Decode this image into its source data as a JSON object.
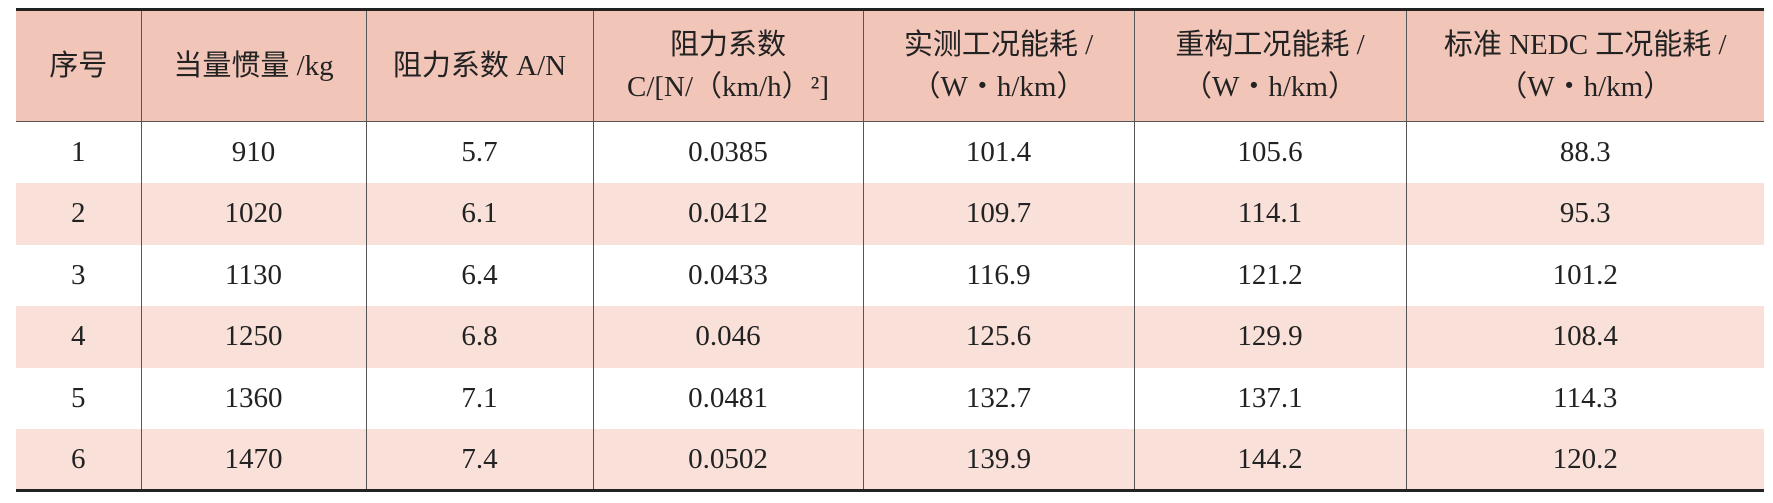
{
  "table": {
    "header": [
      [
        "序号"
      ],
      [
        "当量惯量 /kg"
      ],
      [
        "阻力系数 A/N"
      ],
      [
        "阻力系数",
        "C/[N/（km/h）²]"
      ],
      [
        "实测工况能耗 /",
        "（W・h/km）"
      ],
      [
        "重构工况能耗 /",
        "（W・h/km）"
      ],
      [
        "标准 NEDC 工况能耗 /",
        "（W・h/km）"
      ]
    ],
    "rows": [
      [
        1,
        910,
        5.7,
        0.0385,
        101.4,
        105.6,
        88.3
      ],
      [
        2,
        1020,
        6.1,
        0.0412,
        109.7,
        114.1,
        95.3
      ],
      [
        3,
        1130,
        6.4,
        0.0433,
        116.9,
        121.2,
        101.2
      ],
      [
        4,
        1250,
        6.8,
        0.046,
        125.6,
        129.9,
        108.4
      ],
      [
        5,
        1360,
        7.1,
        0.0481,
        132.7,
        137.1,
        114.3
      ],
      [
        6,
        1470,
        7.4,
        0.0502,
        139.9,
        144.2,
        120.2
      ]
    ]
  }
}
